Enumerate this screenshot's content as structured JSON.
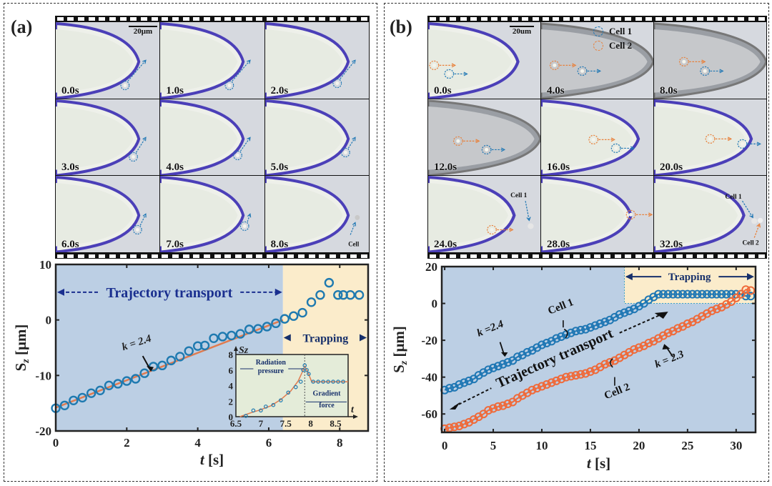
{
  "panels": {
    "a": {
      "label": "(a)",
      "scale_bar": "20μm",
      "frames": [
        "0.0s",
        "1.0s",
        "2.0s",
        "3.0s",
        "4.0s",
        "5.0s",
        "6.0s",
        "7.0s",
        "8.0s"
      ],
      "frame_annotation": "Cell"
    },
    "b": {
      "label": "(b)",
      "scale_bar": "20um",
      "legend": [
        {
          "label": "Cell 1",
          "color": "#1f77b4"
        },
        {
          "label": "Cell 2",
          "color": "#e8803a"
        }
      ],
      "frames": [
        "0.0s",
        "4.0s",
        "8.0s",
        "12.0s",
        "16.0s",
        "20.0s",
        "24.0s",
        "28.0s",
        "32.0s"
      ],
      "frame_annotations": {
        "cell1": "Cell 1",
        "cell2": "Cell 2"
      }
    }
  },
  "colors": {
    "transport_bg": "#bccfe4",
    "trapping_bg": "#fbeccb",
    "inset_bg": "#e4ecd9",
    "cell1": "#1f77b4",
    "cell2": "#ef6a3a",
    "fit": "#e07b4f",
    "annotation_blue": "#1a2f8f"
  },
  "chart_data": [
    {
      "type": "scatter",
      "title": "",
      "xlabel": "t [s]",
      "ylabel": "Sz [μm]",
      "xlim": [
        0,
        8.8
      ],
      "ylim": [
        -20,
        10
      ],
      "xticks": [
        0,
        2,
        4,
        6,
        8
      ],
      "yticks": [
        -20,
        -10,
        0,
        10
      ],
      "regions": [
        {
          "name": "Trajectory transport",
          "x": [
            0,
            6.4
          ]
        },
        {
          "name": "Trapping",
          "x": [
            6.4,
            8.8
          ]
        }
      ],
      "annotations": [
        {
          "text": "Trajectory transport"
        },
        {
          "text": "Trapping"
        },
        {
          "text": "k = 2.4"
        }
      ],
      "series": [
        {
          "name": "Cell",
          "x": [
            0,
            0.25,
            0.5,
            0.75,
            1.0,
            1.25,
            1.5,
            1.75,
            2.0,
            2.25,
            2.5,
            2.75,
            3.0,
            3.25,
            3.5,
            3.75,
            4.0,
            4.2,
            4.45,
            4.7,
            4.95,
            5.2,
            5.45,
            5.7,
            5.95,
            6.2,
            6.45,
            6.7,
            6.95,
            7.2,
            7.45,
            7.7,
            7.95,
            8.1,
            8.3,
            8.55
          ],
          "y": [
            -15.9,
            -15.4,
            -14.5,
            -14.0,
            -13.2,
            -12.7,
            -11.8,
            -11.5,
            -11.0,
            -10.6,
            -9.6,
            -8.4,
            -8.2,
            -7.3,
            -6.6,
            -5.6,
            -4.7,
            -4.6,
            -3.3,
            -3.0,
            -2.8,
            -2.5,
            -1.7,
            -1.6,
            -1.2,
            -0.6,
            0.2,
            0.7,
            1.3,
            3.2,
            4.5,
            6.7,
            4.5,
            4.5,
            4.5,
            4.5
          ]
        },
        {
          "name": "Linear fit",
          "x": [
            0,
            6.4
          ],
          "y": [
            -15.8,
            0
          ]
        }
      ],
      "inset": {
        "xlabel": "t",
        "ylabel": "Sz",
        "xlim": [
          6.5,
          8.75
        ],
        "ylim": [
          0,
          8
        ],
        "xticks": [
          6.5,
          7,
          7.5,
          8,
          8.5
        ],
        "yticks": [
          0,
          2,
          4,
          6,
          8
        ],
        "divider_x": 7.88,
        "labels": [
          "Radiation pressure",
          "Gradient force"
        ],
        "points": {
          "x": [
            6.7,
            6.85,
            7.0,
            7.1,
            7.25,
            7.4,
            7.55,
            7.7,
            7.8,
            7.85,
            7.88,
            7.92,
            7.96,
            8.05,
            8.15,
            8.25,
            8.35,
            8.45,
            8.55,
            8.65
          ],
          "y": [
            0.1,
            0.8,
            0.8,
            1.3,
            1.5,
            2.1,
            3.1,
            3.8,
            4.5,
            6.0,
            6.6,
            6.0,
            5.5,
            4.5,
            4.5,
            4.5,
            4.5,
            4.5,
            4.5,
            4.5
          ]
        },
        "fit": {
          "x": [
            6.58,
            6.8,
            7.0,
            7.2,
            7.4,
            7.6,
            7.75,
            7.85,
            7.88,
            7.95,
            8.02,
            8.1,
            8.3,
            8.5,
            8.75
          ],
          "y": [
            0,
            0.5,
            0.9,
            1.4,
            2.2,
            3.3,
            4.6,
            6.0,
            6.5,
            5.6,
            4.5,
            4.5,
            4.5,
            4.5,
            4.5
          ]
        }
      }
    },
    {
      "type": "scatter",
      "title": "",
      "xlabel": "t [s]",
      "ylabel": "Sz [μm]",
      "xlim": [
        -0.3,
        32
      ],
      "ylim": [
        -70,
        20
      ],
      "xticks": [
        0,
        5,
        10,
        15,
        20,
        25,
        30
      ],
      "yticks": [
        -60,
        -40,
        -20,
        0,
        20
      ],
      "regions": [
        {
          "name": "Trapping",
          "x": [
            18.5,
            32
          ],
          "y": [
            0,
            20
          ]
        }
      ],
      "annotations": [
        {
          "text": "Trapping"
        },
        {
          "text": "Trajectory transport"
        },
        {
          "text": "Cell 1"
        },
        {
          "text": "Cell 2"
        },
        {
          "text": "k =2.4"
        },
        {
          "text": "k = 2.3"
        }
      ],
      "series": [
        {
          "name": "Cell 1",
          "x": [
            0,
            0.5,
            1,
            1.5,
            2,
            2.5,
            3,
            3.5,
            4,
            4.5,
            5,
            5.5,
            6,
            6.5,
            7,
            7.5,
            8,
            8.5,
            9,
            9.5,
            10,
            10.5,
            11,
            11.5,
            12,
            12.5,
            13,
            13.5,
            14,
            14.5,
            15,
            15.5,
            16,
            16.5,
            17,
            17.5,
            18,
            18.5,
            19,
            19.5,
            20,
            20.5,
            21,
            21.5,
            22,
            22.5,
            23,
            23.5,
            24,
            24.5,
            25,
            25.5,
            26,
            26.5,
            27,
            27.5,
            28,
            28.5,
            29,
            29.5,
            30,
            30.5,
            31,
            31.5
          ],
          "y": [
            -47,
            -46,
            -45.5,
            -44,
            -43,
            -42,
            -41,
            -39,
            -37.5,
            -36,
            -35,
            -34,
            -33,
            -32,
            -31,
            -29,
            -28,
            -26.5,
            -25.5,
            -24,
            -22.5,
            -21.5,
            -20.5,
            -19,
            -18,
            -17,
            -16,
            -15,
            -14.5,
            -14,
            -13,
            -12,
            -11,
            -10,
            -9,
            -7.5,
            -6,
            -5,
            -4,
            -3,
            -1.5,
            0,
            2,
            3.5,
            5,
            5,
            5,
            5,
            5,
            5,
            5,
            5,
            5,
            5,
            5,
            5,
            5,
            5,
            5,
            5,
            5,
            5,
            4,
            4
          ]
        },
        {
          "name": "Cell 2",
          "x": [
            0,
            0.5,
            1,
            1.5,
            2,
            2.5,
            3,
            3.5,
            4,
            4.5,
            5,
            5.5,
            6,
            6.5,
            7,
            7.5,
            8,
            8.5,
            9,
            9.5,
            10,
            10.5,
            11,
            11.5,
            12,
            12.5,
            13,
            13.5,
            14,
            14.5,
            15,
            15.5,
            16,
            16.5,
            17,
            17.5,
            18,
            18.5,
            19,
            19.5,
            20,
            20.5,
            21,
            21.5,
            22,
            22.5,
            23,
            23.5,
            24,
            24.5,
            25,
            25.5,
            26,
            26.5,
            27,
            27.5,
            28,
            28.5,
            29,
            29.5,
            30,
            30.5,
            31,
            31.5
          ],
          "y": [
            -68,
            -67.5,
            -67,
            -66.5,
            -65.5,
            -64.5,
            -63,
            -61.5,
            -60,
            -58,
            -57,
            -56,
            -55.5,
            -54.5,
            -53.5,
            -51.5,
            -50,
            -48.5,
            -47,
            -46,
            -45,
            -44,
            -43,
            -42,
            -41,
            -40,
            -39.5,
            -39,
            -38.5,
            -38,
            -37,
            -36,
            -34.5,
            -33,
            -32,
            -31,
            -29.5,
            -28,
            -26.5,
            -25,
            -24,
            -23,
            -21.5,
            -20.5,
            -19,
            -17.5,
            -16,
            -15,
            -13.5,
            -12.5,
            -11,
            -10,
            -8.5,
            -7,
            -5.5,
            -4,
            -3,
            -2,
            -0.5,
            1,
            3,
            5,
            7.5,
            7
          ]
        }
      ]
    }
  ],
  "axis_labels": {
    "a": {
      "x_italic": "t",
      "x_unit": " [s]",
      "y": "S",
      "y_sub": "z",
      "y_unit": " [μm]"
    },
    "b": {
      "x_italic": "t",
      "x_unit": " [s]",
      "y": "S",
      "y_sub": "z",
      "y_unit": " [μm]"
    }
  }
}
